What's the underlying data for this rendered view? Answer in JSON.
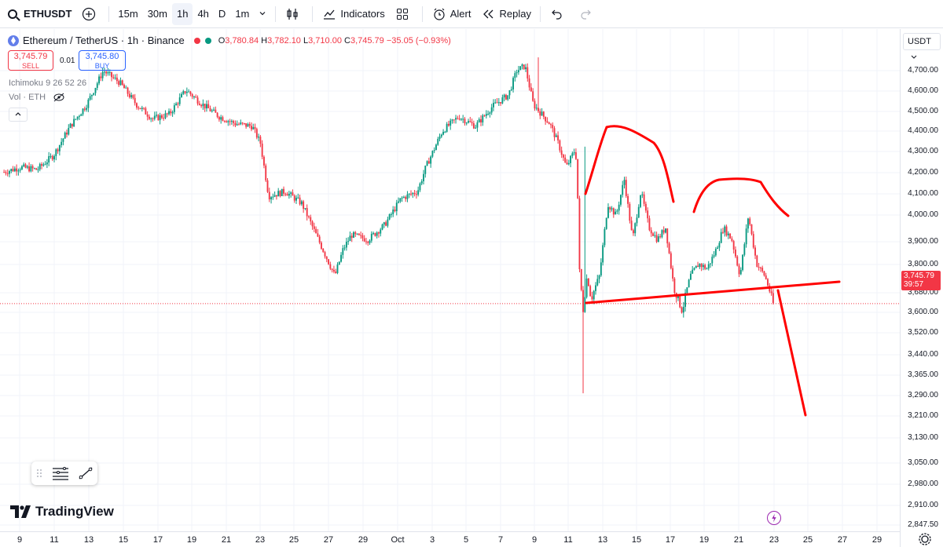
{
  "toolbar": {
    "symbol": "ETHUSDT",
    "intervals": [
      "15m",
      "30m",
      "1h",
      "4h",
      "D",
      "1m"
    ],
    "active_interval": "1h",
    "indicators_label": "Indicators",
    "alert_label": "Alert",
    "replay_label": "Replay"
  },
  "legend": {
    "title": "Ethereum / TetherUS · 1h · Binance",
    "open_label": "O",
    "open": "3,780.84",
    "high_label": "H",
    "high": "3,782.10",
    "low_label": "L",
    "low": "3,710.00",
    "close_label": "C",
    "close": "3,745.79",
    "change": "−35.05 (−0.93%)"
  },
  "trade": {
    "sell_price": "3,745.79",
    "sell_label": "SELL",
    "spread": "0.01",
    "buy_price": "3,745.80",
    "buy_label": "BUY"
  },
  "indicators": {
    "ichimoku": "Ichimoku 9 26 52 26",
    "volume": "Vol · ETH"
  },
  "price_axis": {
    "currency": "USDT",
    "labels": [
      "4,700.00",
      "4,600.00",
      "4,500.00",
      "4,400.00",
      "4,300.00",
      "4,200.00",
      "4,100.00",
      "4,000.00",
      "3,900.00",
      "3,800.00",
      "3,680.00",
      "3,600.00",
      "3,520.00",
      "3,440.00",
      "3,365.00",
      "3,290.00",
      "3,210.00",
      "3,130.00",
      "3,050.00",
      "2,980.00",
      "2,910.00",
      "2,847.50"
    ],
    "current_price": "3,745.79",
    "countdown": "39:57"
  },
  "time_axis": {
    "labels": [
      "9",
      "11",
      "13",
      "15",
      "17",
      "19",
      "21",
      "23",
      "25",
      "27",
      "29",
      "Oct",
      "3",
      "5",
      "7",
      "9",
      "11",
      "13",
      "15",
      "17",
      "19",
      "21",
      "23",
      "25",
      "27",
      "29"
    ]
  },
  "branding": {
    "logo_text": "TradingView"
  },
  "colors": {
    "up": "#089981",
    "down": "#f23645",
    "drawing": "#ff0000",
    "accent": "#2962ff"
  },
  "chart_data": {
    "type": "candlestick",
    "xlabel": "",
    "ylabel": "",
    "ylim": [
      2847.5,
      4760
    ],
    "anchors": [
      [
        0,
        4280
      ],
      [
        2,
        4300
      ],
      [
        4,
        4290
      ],
      [
        6,
        4350
      ],
      [
        8,
        4470
      ],
      [
        10,
        4560
      ],
      [
        12,
        4700
      ],
      [
        14,
        4650
      ],
      [
        16,
        4560
      ],
      [
        18,
        4500
      ],
      [
        20,
        4520
      ],
      [
        22,
        4620
      ],
      [
        24,
        4560
      ],
      [
        26,
        4510
      ],
      [
        28,
        4480
      ],
      [
        30,
        4470
      ],
      [
        31,
        4400
      ],
      [
        32,
        4180
      ],
      [
        34,
        4200
      ],
      [
        36,
        4150
      ],
      [
        38,
        4000
      ],
      [
        40,
        3850
      ],
      [
        41,
        3960
      ],
      [
        42,
        4020
      ],
      [
        44,
        4000
      ],
      [
        46,
        4060
      ],
      [
        48,
        4170
      ],
      [
        50,
        4200
      ],
      [
        51,
        4300
      ],
      [
        53,
        4450
      ],
      [
        55,
        4510
      ],
      [
        57,
        4470
      ],
      [
        59,
        4550
      ],
      [
        61,
        4600
      ],
      [
        62,
        4700
      ],
      [
        63,
        4720
      ],
      [
        64,
        4560
      ],
      [
        66,
        4480
      ],
      [
        67,
        4400
      ],
      [
        68,
        4300
      ],
      [
        69,
        4370
      ],
      [
        69.3,
        4320
      ],
      [
        69.5,
        3900
      ],
      [
        70,
        3720
      ],
      [
        70.5,
        3850
      ],
      [
        71,
        3760
      ],
      [
        72,
        3850
      ],
      [
        73,
        4150
      ],
      [
        74,
        4100
      ],
      [
        75,
        4250
      ],
      [
        76,
        4000
      ],
      [
        77,
        4200
      ],
      [
        78,
        4050
      ],
      [
        79,
        4000
      ],
      [
        80,
        4050
      ],
      [
        81,
        3800
      ],
      [
        82,
        3720
      ],
      [
        83,
        3850
      ],
      [
        84,
        3900
      ],
      [
        85,
        3880
      ],
      [
        86,
        3950
      ],
      [
        87,
        4050
      ],
      [
        88,
        4000
      ],
      [
        89,
        3850
      ],
      [
        90,
        4100
      ],
      [
        91,
        3900
      ],
      [
        92,
        3850
      ],
      [
        93,
        3745.79
      ]
    ],
    "extremes": {
      "wick_low": 3435,
      "wick_high": 4385,
      "peak_high": 4755
    },
    "annotations": {
      "neckline": [
        [
          0,
          3640
        ],
        [
          1,
          3720
        ]
      ],
      "projection_end_price": 3190
    }
  }
}
